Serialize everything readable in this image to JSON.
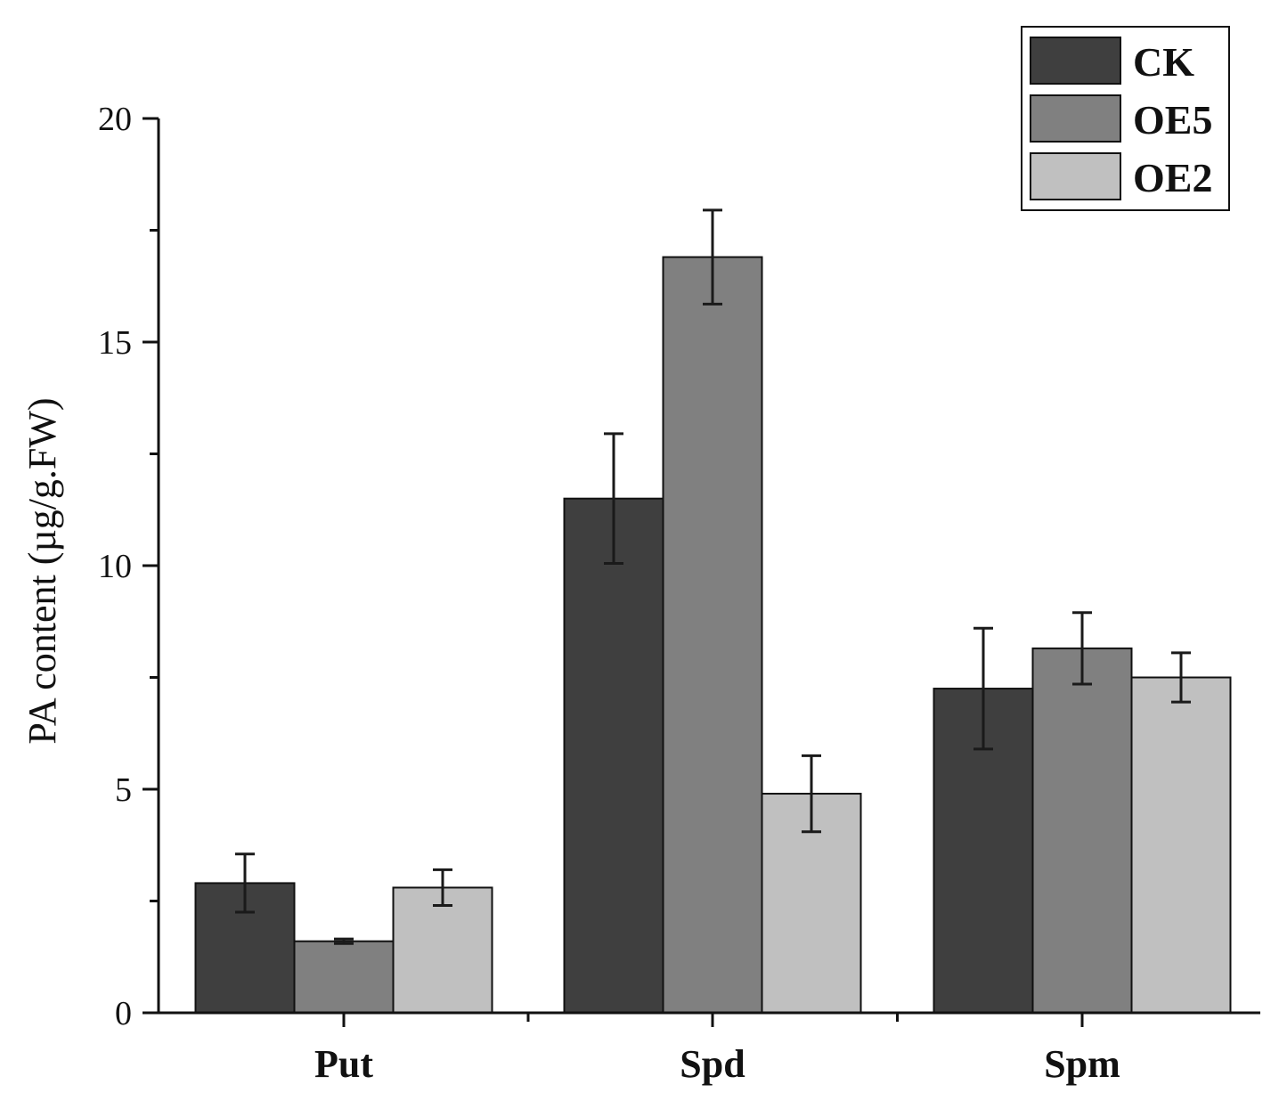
{
  "chart_data": {
    "type": "bar",
    "title": "",
    "xlabel": "",
    "ylabel": "PA content (µg/g.FW)",
    "ylim": [
      0,
      20
    ],
    "yticks": [
      "0",
      "5",
      "10",
      "15",
      "20"
    ],
    "categories": [
      "Put",
      "Spd",
      "Spm"
    ],
    "series": [
      {
        "name": "CK",
        "color": "#3f3f3f",
        "values": [
          2.9,
          11.5,
          7.25
        ],
        "errors": [
          0.65,
          1.45,
          1.35
        ]
      },
      {
        "name": "OE5",
        "color": "#808080",
        "values": [
          1.6,
          16.9,
          8.15
        ],
        "errors": [
          0.05,
          1.05,
          0.8
        ]
      },
      {
        "name": "OE2",
        "color": "#c0c0c0",
        "values": [
          2.8,
          4.9,
          7.5
        ],
        "errors": [
          0.4,
          0.85,
          0.55
        ]
      }
    ],
    "legend_position": "top-right",
    "grid": false
  }
}
